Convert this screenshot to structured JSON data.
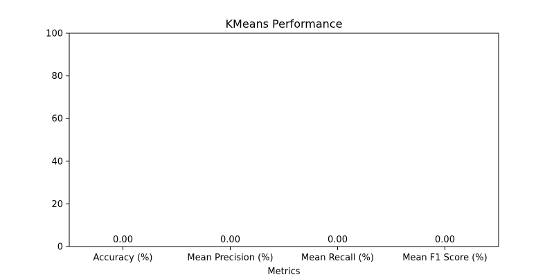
{
  "chart_data": {
    "type": "bar",
    "title": "KMeans Performance",
    "xlabel": "Metrics",
    "ylabel": "",
    "categories": [
      "Accuracy (%)",
      "Mean Precision (%)",
      "Mean Recall (%)",
      "Mean F1 Score (%)"
    ],
    "values": [
      0,
      0,
      0,
      0
    ],
    "value_labels": [
      "0.00",
      "0.00",
      "0.00",
      "0.00"
    ],
    "ylim": [
      0,
      100
    ],
    "yticks": [
      0,
      20,
      40,
      60,
      80,
      100
    ],
    "grid": false,
    "bar_color": "#1f77b4"
  }
}
